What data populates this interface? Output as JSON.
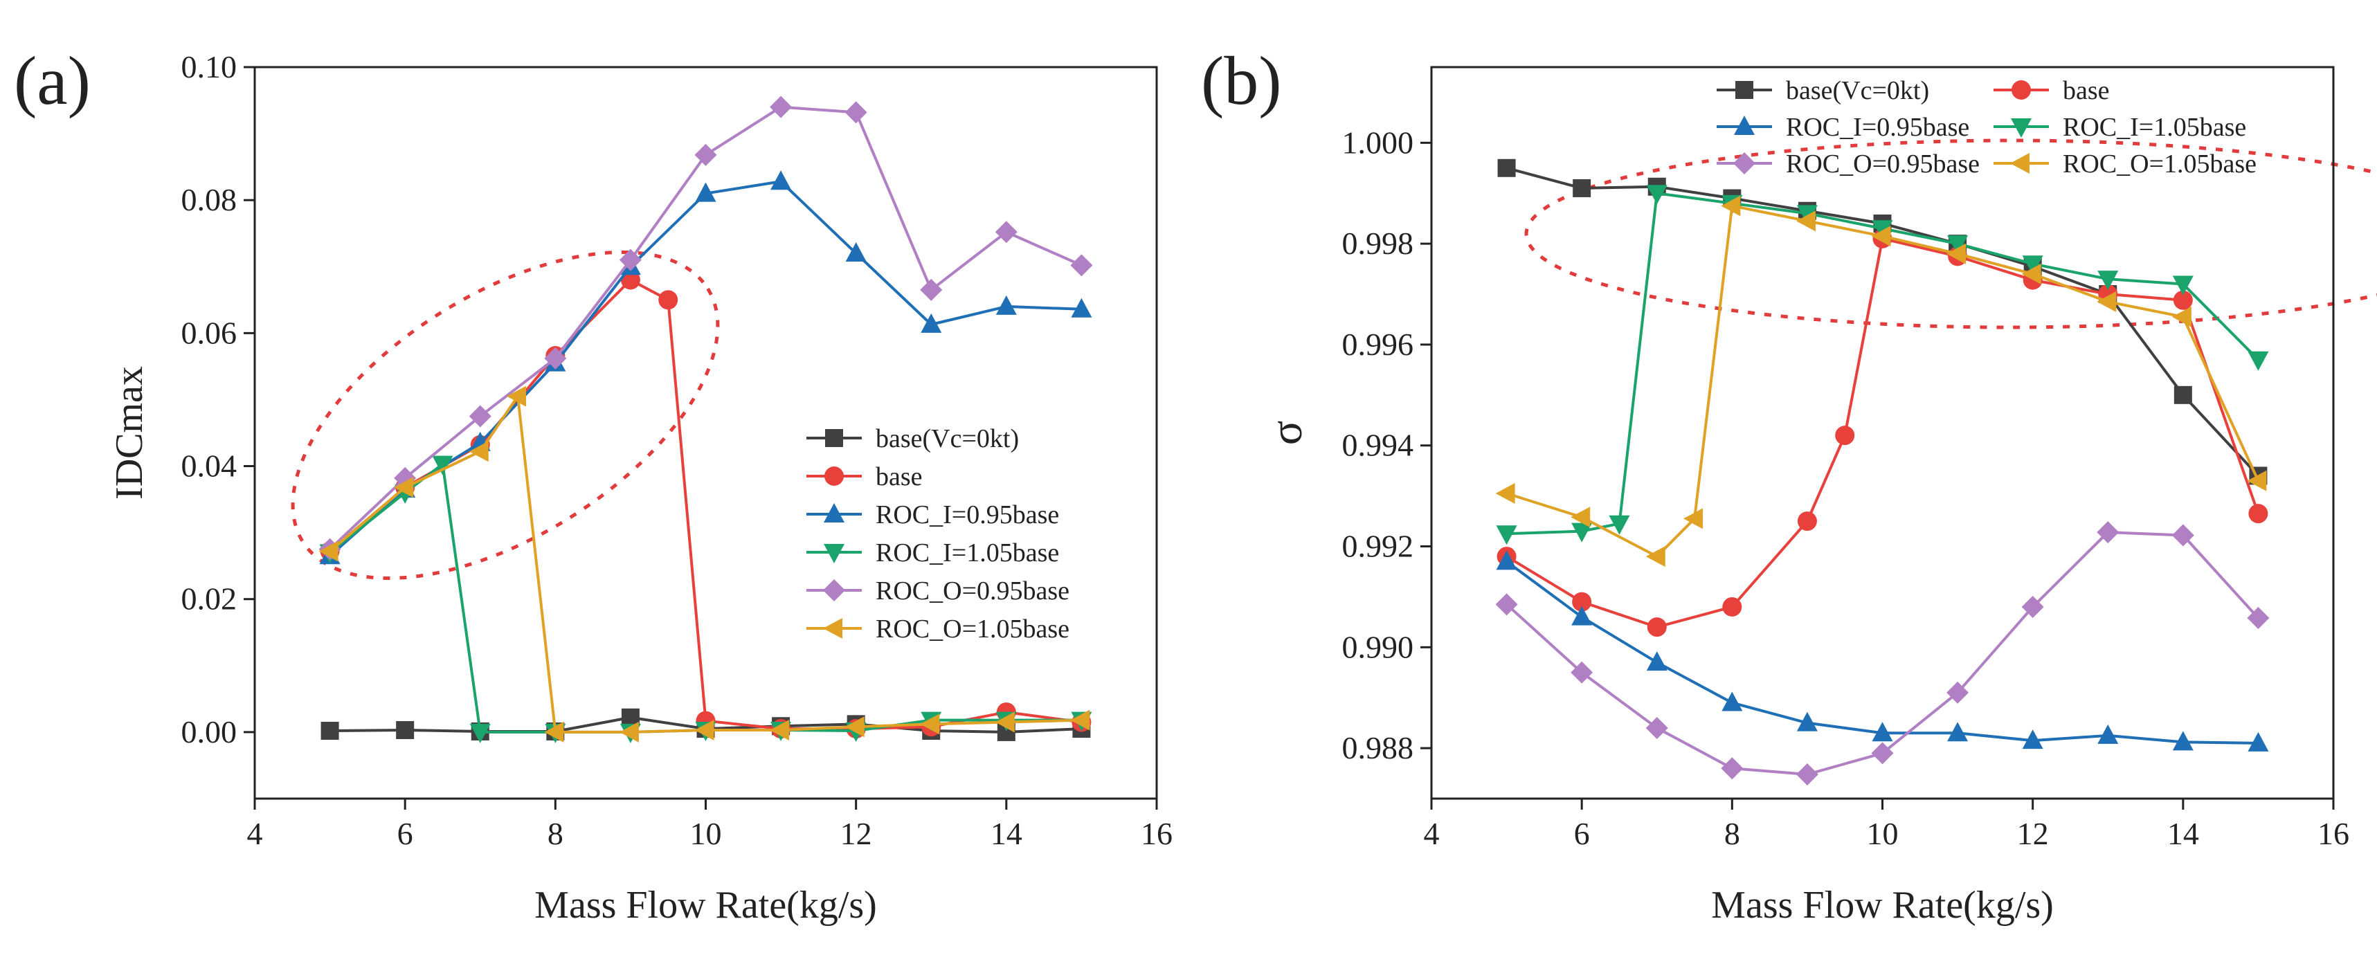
{
  "chart_data": [
    {
      "panel": "(a)",
      "type": "line",
      "xlabel": "Mass Flow Rate(kg/s)",
      "ylabel": "IDCmax",
      "xlim": [
        4,
        16
      ],
      "ylim": [
        -0.01,
        0.1
      ],
      "xticks": [
        4,
        6,
        8,
        10,
        12,
        14,
        16
      ],
      "yticks": [
        0.0,
        0.02,
        0.04,
        0.06,
        0.08,
        0.1
      ],
      "ytick_labels": [
        "0.00",
        "0.02",
        "0.04",
        "0.06",
        "0.08",
        "0.10"
      ],
      "legend_position": "center-right",
      "annotation": "red dashed ellipse around x=5-9.5",
      "series": [
        {
          "name": "base(Vc=0kt)",
          "color": "#404040",
          "marker": "square",
          "x": [
            5,
            6,
            7,
            8,
            9,
            10,
            11,
            12,
            13,
            14,
            15
          ],
          "y": [
            0.0002,
            0.0003,
            0.0001,
            0.0001,
            0.0022,
            0.0005,
            0.0009,
            0.0012,
            0.0002,
            0.0,
            0.0005
          ]
        },
        {
          "name": "base",
          "color": "#e8413c",
          "marker": "circle",
          "x": [
            5,
            6,
            7,
            8,
            9,
            9.5,
            10,
            11,
            12,
            13,
            14,
            15
          ],
          "y": [
            0.0272,
            0.0368,
            0.0432,
            0.0566,
            0.068,
            0.065,
            0.0017,
            0.0005,
            0.0005,
            0.0008,
            0.003,
            0.0015
          ]
        },
        {
          "name": "ROC_I=0.95base",
          "color": "#1f6fb6",
          "marker": "triangle-up",
          "x": [
            5,
            6,
            7,
            8,
            9,
            10,
            11,
            12,
            13,
            14,
            15
          ],
          "y": [
            0.0265,
            0.0365,
            0.0435,
            0.0555,
            0.07,
            0.081,
            0.0828,
            0.072,
            0.0613,
            0.064,
            0.0636
          ]
        },
        {
          "name": "ROC_I=1.05base",
          "color": "#1aa36a",
          "marker": "triangle-down",
          "x": [
            5,
            6,
            6.5,
            7,
            8,
            9,
            10,
            11,
            12,
            13,
            14,
            15
          ],
          "y": [
            0.027,
            0.036,
            0.0403,
            0.0,
            0.0,
            0.0,
            0.0003,
            0.0003,
            0.0002,
            0.0018,
            0.0018,
            0.0018
          ]
        },
        {
          "name": "ROC_O=0.95base",
          "color": "#b07fc4",
          "marker": "diamond",
          "x": [
            5,
            6,
            7,
            8,
            9,
            10,
            11,
            12,
            13,
            14,
            15
          ],
          "y": [
            0.0275,
            0.0382,
            0.0475,
            0.0562,
            0.071,
            0.0868,
            0.094,
            0.0932,
            0.0665,
            0.0752,
            0.0702
          ]
        },
        {
          "name": "ROC_O=1.05base",
          "color": "#e0a225",
          "marker": "triangle-left",
          "x": [
            5,
            6,
            7,
            7.5,
            8,
            9,
            10,
            11,
            12,
            13,
            14,
            15
          ],
          "y": [
            0.0272,
            0.0368,
            0.0422,
            0.0505,
            0.0,
            0.0,
            0.0003,
            0.0003,
            0.0008,
            0.0012,
            0.0015,
            0.0018
          ]
        }
      ]
    },
    {
      "panel": "(b)",
      "type": "line",
      "xlabel": "Mass Flow Rate(kg/s)",
      "ylabel": "σ",
      "xlim": [
        4,
        16
      ],
      "ylim": [
        0.987,
        1.0015
      ],
      "xticks": [
        4,
        6,
        8,
        10,
        12,
        14,
        16
      ],
      "yticks": [
        0.988,
        0.99,
        0.992,
        0.994,
        0.996,
        0.998,
        1.0
      ],
      "ytick_labels": [
        "0.988",
        "0.990",
        "0.992",
        "0.994",
        "0.996",
        "0.998",
        "1.000"
      ],
      "legend_position": "top",
      "annotation": "red dashed ellipse around x=6.5-13",
      "series": [
        {
          "name": "base(Vc=0kt)",
          "color": "#404040",
          "marker": "square",
          "x": [
            5,
            6,
            7,
            8,
            9,
            10,
            11,
            12,
            13,
            14,
            15
          ],
          "y": [
            0.9995,
            0.9991,
            0.99913,
            0.9989,
            0.99865,
            0.9984,
            0.998,
            0.99755,
            0.997,
            0.995,
            0.9934
          ]
        },
        {
          "name": "base",
          "color": "#e8413c",
          "marker": "circle",
          "x": [
            5,
            6,
            7,
            8,
            9,
            9.5,
            10,
            11,
            12,
            13,
            14,
            15
          ],
          "y": [
            0.9918,
            0.9909,
            0.9904,
            0.9908,
            0.9925,
            0.9942,
            0.9981,
            0.99775,
            0.99728,
            0.997,
            0.99688,
            0.99265
          ]
        },
        {
          "name": "ROC_I=0.95base",
          "color": "#1f6fb6",
          "marker": "triangle-up",
          "x": [
            5,
            6,
            7,
            8,
            9,
            10,
            11,
            12,
            13,
            14,
            15
          ],
          "y": [
            0.9917,
            0.9906,
            0.9897,
            0.9889,
            0.9885,
            0.9883,
            0.9883,
            0.98815,
            0.98825,
            0.98812,
            0.9881
          ]
        },
        {
          "name": "ROC_I=1.05base",
          "color": "#1aa36a",
          "marker": "triangle-down",
          "x": [
            5,
            6,
            6.5,
            7,
            8,
            9,
            10,
            11,
            12,
            13,
            14,
            15
          ],
          "y": [
            0.99225,
            0.9923,
            0.99245,
            0.999,
            0.9988,
            0.9986,
            0.9983,
            0.998,
            0.9976,
            0.9973,
            0.9972,
            0.9957
          ]
        },
        {
          "name": "ROC_O=0.95base",
          "color": "#b07fc4",
          "marker": "diamond",
          "x": [
            5,
            6,
            7,
            8,
            9,
            10,
            11,
            12,
            13,
            14,
            15
          ],
          "y": [
            0.99085,
            0.9895,
            0.9884,
            0.9876,
            0.98748,
            0.9879,
            0.9891,
            0.9908,
            0.99228,
            0.99222,
            0.99058
          ]
        },
        {
          "name": "ROC_O=1.05base",
          "color": "#e0a225",
          "marker": "triangle-left",
          "x": [
            5,
            6,
            7,
            7.5,
            8,
            9,
            10,
            11,
            12,
            13,
            14,
            15
          ],
          "y": [
            0.99305,
            0.99258,
            0.9918,
            0.99255,
            0.99875,
            0.99845,
            0.99815,
            0.9978,
            0.9974,
            0.99685,
            0.99655,
            0.9933
          ]
        }
      ]
    }
  ]
}
